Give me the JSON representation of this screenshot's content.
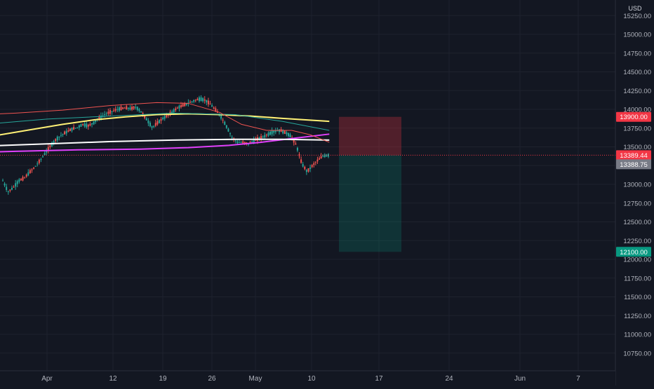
{
  "chart_data": {
    "type": "candlestick",
    "currency": "USD",
    "ylim": [
      10550,
      15400
    ],
    "y_ticks": [
      "15250.00",
      "15000.00",
      "14750.00",
      "14500.00",
      "14250.00",
      "14000.00",
      "13750.00",
      "13500.00",
      "13250.00",
      "13000.00",
      "12750.00",
      "12500.00",
      "12250.00",
      "12000.00",
      "11750.00",
      "11500.00",
      "11250.00",
      "11000.00",
      "10750.00"
    ],
    "x_ticks": [
      "Apr",
      "12",
      "19",
      "26",
      "May",
      "10",
      "17",
      "24",
      "Jun",
      "7"
    ],
    "price_labels": {
      "stop": {
        "text": "13900.00",
        "value": 13900,
        "color": "#f23645"
      },
      "current": {
        "text": "13389.44",
        "value": 13389.44,
        "color": "#f23645"
      },
      "previous": {
        "text": "13388.75",
        "value": 13388.75,
        "color": "#787b86"
      },
      "target": {
        "text": "12100.00",
        "value": 12100,
        "color": "#089981"
      }
    },
    "position": {
      "side": "short",
      "entry": 13389.44,
      "stop": 13900,
      "target": 12100,
      "risk_color": "#f23645",
      "reward_color": "#089981"
    },
    "closes": [
      13050,
      12900,
      12960,
      13050,
      13080,
      13160,
      13230,
      13320,
      13420,
      13520,
      13600,
      13660,
      13700,
      13740,
      13760,
      13800,
      13780,
      13820,
      13880,
      13930,
      13960,
      13990,
      14010,
      14020,
      14010,
      14030,
      13960,
      13860,
      13760,
      13820,
      13880,
      13920,
      13980,
      14030,
      14060,
      14090,
      14120,
      14140,
      14120,
      14060,
      13980,
      13890,
      13760,
      13620,
      13560,
      13560,
      13540,
      13580,
      13610,
      13640,
      13680,
      13710,
      13720,
      13690,
      13640,
      13520,
      13280,
      13170,
      13250,
      13320,
      13380,
      13389
    ],
    "indicators": [
      {
        "color": "#e040fb",
        "points": [
          [
            -200,
            13540
          ],
          [
            -190,
            13490
          ],
          [
            -170,
            13440
          ],
          [
            -150,
            13430
          ],
          [
            -130,
            13410
          ],
          [
            -110,
            13430
          ],
          [
            -90,
            13430
          ],
          [
            -70,
            13420
          ],
          [
            -50,
            13410
          ],
          [
            -30,
            13420
          ],
          [
            -10,
            13440
          ],
          [
            10,
            13460
          ],
          [
            30,
            13470
          ],
          [
            45,
            13490
          ],
          [
            58,
            13520
          ],
          [
            68,
            13560
          ],
          [
            80,
            13620
          ],
          [
            90,
            13670
          ]
        ]
      },
      {
        "color": "#ffffff",
        "points": [
          [
            -200,
            13330
          ],
          [
            -180,
            13350
          ],
          [
            -160,
            13370
          ],
          [
            -140,
            13380
          ],
          [
            -120,
            13400
          ],
          [
            -100,
            13410
          ],
          [
            -80,
            13430
          ],
          [
            -60,
            13460
          ],
          [
            -40,
            13480
          ],
          [
            -20,
            13510
          ],
          [
            0,
            13540
          ],
          [
            20,
            13570
          ],
          [
            40,
            13590
          ],
          [
            60,
            13600
          ],
          [
            75,
            13600
          ],
          [
            90,
            13590
          ]
        ]
      },
      {
        "color": "#fff176",
        "points": [
          [
            -75,
            13380
          ],
          [
            -65,
            13380
          ],
          [
            -55,
            13420
          ],
          [
            -45,
            13460
          ],
          [
            -35,
            13520
          ],
          [
            -25,
            13580
          ],
          [
            -15,
            13660
          ],
          [
            -5,
            13730
          ],
          [
            5,
            13800
          ],
          [
            15,
            13860
          ],
          [
            25,
            13900
          ],
          [
            35,
            13930
          ],
          [
            45,
            13940
          ],
          [
            55,
            13930
          ],
          [
            65,
            13910
          ],
          [
            75,
            13880
          ],
          [
            90,
            13840
          ]
        ]
      },
      {
        "color": "#26a69a",
        "points": [
          [
            -200,
            13300
          ],
          [
            -150,
            13200
          ],
          [
            -110,
            13200
          ],
          [
            -90,
            13300
          ],
          [
            -70,
            13420
          ],
          [
            -50,
            13560
          ],
          [
            -35,
            13700
          ],
          [
            -20,
            13800
          ],
          [
            0,
            13870
          ],
          [
            20,
            13910
          ],
          [
            40,
            13950
          ],
          [
            60,
            13930
          ],
          [
            75,
            13840
          ],
          [
            90,
            13720
          ]
        ]
      },
      {
        "color": "#ef5350",
        "points": [
          [
            -200,
            13350
          ],
          [
            -160,
            13100
          ],
          [
            -130,
            13070
          ],
          [
            -110,
            13200
          ],
          [
            -90,
            13430
          ],
          [
            -70,
            13620
          ],
          [
            -55,
            13760
          ],
          [
            -40,
            13860
          ],
          [
            -25,
            13920
          ],
          [
            -10,
            13950
          ],
          [
            5,
            13990
          ],
          [
            20,
            14050
          ],
          [
            35,
            14090
          ],
          [
            45,
            14080
          ],
          [
            55,
            13960
          ],
          [
            62,
            13800
          ],
          [
            70,
            13720
          ],
          [
            78,
            13720
          ],
          [
            84,
            13660
          ],
          [
            90,
            13560
          ]
        ]
      }
    ]
  }
}
